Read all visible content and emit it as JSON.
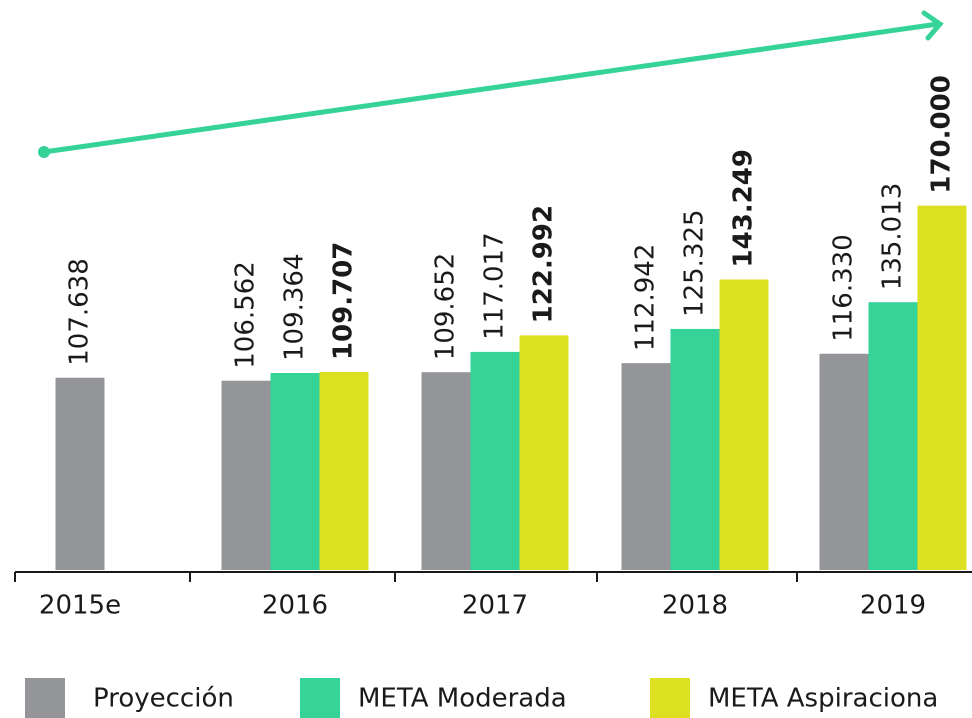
{
  "chart_data": {
    "type": "bar",
    "categories": [
      "2015e",
      "2016",
      "2017",
      "2018",
      "2019"
    ],
    "series": [
      {
        "name": "Proyección",
        "color": "#939598",
        "values": [
          107638,
          106562,
          109652,
          112942,
          116330
        ],
        "value_labels": [
          "107.638",
          "106.562",
          "109.652",
          "112.942",
          "116.330"
        ]
      },
      {
        "name": "META Moderada",
        "color": "#36d399",
        "values": [
          null,
          109364,
          117017,
          125325,
          135013
        ],
        "value_labels": [
          null,
          "109.364",
          "117.017",
          "125.325",
          "135.013"
        ]
      },
      {
        "name": "META Aspiraciona",
        "color": "#dde021",
        "values": [
          null,
          109707,
          122992,
          143249,
          170000
        ],
        "value_labels": [
          null,
          "109.707",
          "122.992",
          "143.249",
          "170.000"
        ]
      }
    ],
    "ylim": [
      38000,
      230000
    ]
  }
}
